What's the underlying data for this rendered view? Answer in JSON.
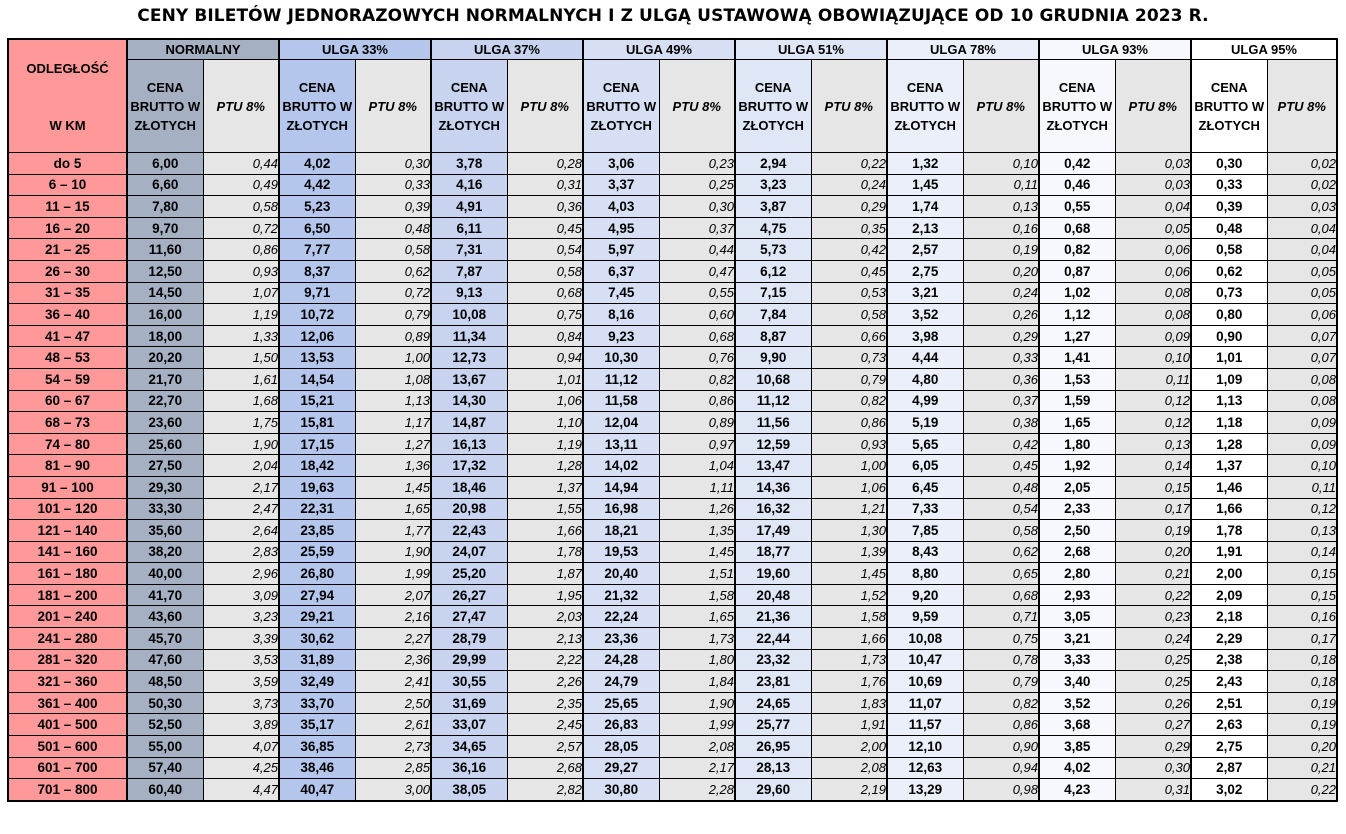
{
  "title": "CENY BILETÓW JEDNORAZOWYCH NORMALNYCH I Z ULGĄ USTAWOWĄ OBOWIĄZUJĄCE OD 10 GRUDNIA 2023 R.",
  "header": {
    "distance_line1": "ODLEGŁOŚĆ",
    "distance_line2": "W KM",
    "groups": [
      "NORMALNY",
      "ULGA 33%",
      "ULGA 37%",
      "ULGA 49%",
      "ULGA 51%",
      "ULGA 78%",
      "ULGA 93%",
      "ULGA 95%"
    ],
    "price_label": "CENA BRUTTO W ZŁOTYCH",
    "ptu_label": "PTU 8%"
  },
  "rows": [
    {
      "dist": "do 5",
      "cells": [
        "6,00",
        "0,44",
        "4,02",
        "0,30",
        "3,78",
        "0,28",
        "3,06",
        "0,23",
        "2,94",
        "0,22",
        "1,32",
        "0,10",
        "0,42",
        "0,03",
        "0,30",
        "0,02"
      ]
    },
    {
      "dist": "6 – 10",
      "cells": [
        "6,60",
        "0,49",
        "4,42",
        "0,33",
        "4,16",
        "0,31",
        "3,37",
        "0,25",
        "3,23",
        "0,24",
        "1,45",
        "0,11",
        "0,46",
        "0,03",
        "0,33",
        "0,02"
      ]
    },
    {
      "dist": "11 – 15",
      "cells": [
        "7,80",
        "0,58",
        "5,23",
        "0,39",
        "4,91",
        "0,36",
        "4,03",
        "0,30",
        "3,87",
        "0,29",
        "1,74",
        "0,13",
        "0,55",
        "0,04",
        "0,39",
        "0,03"
      ]
    },
    {
      "dist": "16 – 20",
      "cells": [
        "9,70",
        "0,72",
        "6,50",
        "0,48",
        "6,11",
        "0,45",
        "4,95",
        "0,37",
        "4,75",
        "0,35",
        "2,13",
        "0,16",
        "0,68",
        "0,05",
        "0,48",
        "0,04"
      ]
    },
    {
      "dist": "21 – 25",
      "cells": [
        "11,60",
        "0,86",
        "7,77",
        "0,58",
        "7,31",
        "0,54",
        "5,97",
        "0,44",
        "5,73",
        "0,42",
        "2,57",
        "0,19",
        "0,82",
        "0,06",
        "0,58",
        "0,04"
      ]
    },
    {
      "dist": "26 – 30",
      "cells": [
        "12,50",
        "0,93",
        "8,37",
        "0,62",
        "7,87",
        "0,58",
        "6,37",
        "0,47",
        "6,12",
        "0,45",
        "2,75",
        "0,20",
        "0,87",
        "0,06",
        "0,62",
        "0,05"
      ]
    },
    {
      "dist": "31 – 35",
      "cells": [
        "14,50",
        "1,07",
        "9,71",
        "0,72",
        "9,13",
        "0,68",
        "7,45",
        "0,55",
        "7,15",
        "0,53",
        "3,21",
        "0,24",
        "1,02",
        "0,08",
        "0,73",
        "0,05"
      ]
    },
    {
      "dist": "36 – 40",
      "cells": [
        "16,00",
        "1,19",
        "10,72",
        "0,79",
        "10,08",
        "0,75",
        "8,16",
        "0,60",
        "7,84",
        "0,58",
        "3,52",
        "0,26",
        "1,12",
        "0,08",
        "0,80",
        "0,06"
      ]
    },
    {
      "dist": "41 – 47",
      "cells": [
        "18,00",
        "1,33",
        "12,06",
        "0,89",
        "11,34",
        "0,84",
        "9,23",
        "0,68",
        "8,87",
        "0,66",
        "3,98",
        "0,29",
        "1,27",
        "0,09",
        "0,90",
        "0,07"
      ]
    },
    {
      "dist": "48 – 53",
      "cells": [
        "20,20",
        "1,50",
        "13,53",
        "1,00",
        "12,73",
        "0,94",
        "10,30",
        "0,76",
        "9,90",
        "0,73",
        "4,44",
        "0,33",
        "1,41",
        "0,10",
        "1,01",
        "0,07"
      ]
    },
    {
      "dist": "54 – 59",
      "cells": [
        "21,70",
        "1,61",
        "14,54",
        "1,08",
        "13,67",
        "1,01",
        "11,12",
        "0,82",
        "10,68",
        "0,79",
        "4,80",
        "0,36",
        "1,53",
        "0,11",
        "1,09",
        "0,08"
      ]
    },
    {
      "dist": "60 – 67",
      "cells": [
        "22,70",
        "1,68",
        "15,21",
        "1,13",
        "14,30",
        "1,06",
        "11,58",
        "0,86",
        "11,12",
        "0,82",
        "4,99",
        "0,37",
        "1,59",
        "0,12",
        "1,13",
        "0,08"
      ]
    },
    {
      "dist": "68 – 73",
      "cells": [
        "23,60",
        "1,75",
        "15,81",
        "1,17",
        "14,87",
        "1,10",
        "12,04",
        "0,89",
        "11,56",
        "0,86",
        "5,19",
        "0,38",
        "1,65",
        "0,12",
        "1,18",
        "0,09"
      ]
    },
    {
      "dist": "74 – 80",
      "cells": [
        "25,60",
        "1,90",
        "17,15",
        "1,27",
        "16,13",
        "1,19",
        "13,11",
        "0,97",
        "12,59",
        "0,93",
        "5,65",
        "0,42",
        "1,80",
        "0,13",
        "1,28",
        "0,09"
      ]
    },
    {
      "dist": "81 – 90",
      "cells": [
        "27,50",
        "2,04",
        "18,42",
        "1,36",
        "17,32",
        "1,28",
        "14,02",
        "1,04",
        "13,47",
        "1,00",
        "6,05",
        "0,45",
        "1,92",
        "0,14",
        "1,37",
        "0,10"
      ]
    },
    {
      "dist": "91 – 100",
      "cells": [
        "29,30",
        "2,17",
        "19,63",
        "1,45",
        "18,46",
        "1,37",
        "14,94",
        "1,11",
        "14,36",
        "1,06",
        "6,45",
        "0,48",
        "2,05",
        "0,15",
        "1,46",
        "0,11"
      ]
    },
    {
      "dist": "101 – 120",
      "cells": [
        "33,30",
        "2,47",
        "22,31",
        "1,65",
        "20,98",
        "1,55",
        "16,98",
        "1,26",
        "16,32",
        "1,21",
        "7,33",
        "0,54",
        "2,33",
        "0,17",
        "1,66",
        "0,12"
      ]
    },
    {
      "dist": "121 – 140",
      "cells": [
        "35,60",
        "2,64",
        "23,85",
        "1,77",
        "22,43",
        "1,66",
        "18,21",
        "1,35",
        "17,49",
        "1,30",
        "7,85",
        "0,58",
        "2,50",
        "0,19",
        "1,78",
        "0,13"
      ]
    },
    {
      "dist": "141 – 160",
      "cells": [
        "38,20",
        "2,83",
        "25,59",
        "1,90",
        "24,07",
        "1,78",
        "19,53",
        "1,45",
        "18,77",
        "1,39",
        "8,43",
        "0,62",
        "2,68",
        "0,20",
        "1,91",
        "0,14"
      ]
    },
    {
      "dist": "161 – 180",
      "cells": [
        "40,00",
        "2,96",
        "26,80",
        "1,99",
        "25,20",
        "1,87",
        "20,40",
        "1,51",
        "19,60",
        "1,45",
        "8,80",
        "0,65",
        "2,80",
        "0,21",
        "2,00",
        "0,15"
      ]
    },
    {
      "dist": "181 – 200",
      "cells": [
        "41,70",
        "3,09",
        "27,94",
        "2,07",
        "26,27",
        "1,95",
        "21,32",
        "1,58",
        "20,48",
        "1,52",
        "9,20",
        "0,68",
        "2,93",
        "0,22",
        "2,09",
        "0,15"
      ]
    },
    {
      "dist": "201 – 240",
      "cells": [
        "43,60",
        "3,23",
        "29,21",
        "2,16",
        "27,47",
        "2,03",
        "22,24",
        "1,65",
        "21,36",
        "1,58",
        "9,59",
        "0,71",
        "3,05",
        "0,23",
        "2,18",
        "0,16"
      ]
    },
    {
      "dist": "241 – 280",
      "cells": [
        "45,70",
        "3,39",
        "30,62",
        "2,27",
        "28,79",
        "2,13",
        "23,36",
        "1,73",
        "22,44",
        "1,66",
        "10,08",
        "0,75",
        "3,21",
        "0,24",
        "2,29",
        "0,17"
      ]
    },
    {
      "dist": "281 – 320",
      "cells": [
        "47,60",
        "3,53",
        "31,89",
        "2,36",
        "29,99",
        "2,22",
        "24,28",
        "1,80",
        "23,32",
        "1,73",
        "10,47",
        "0,78",
        "3,33",
        "0,25",
        "2,38",
        "0,18"
      ]
    },
    {
      "dist": "321 – 360",
      "cells": [
        "48,50",
        "3,59",
        "32,49",
        "2,41",
        "30,55",
        "2,26",
        "24,79",
        "1,84",
        "23,81",
        "1,76",
        "10,69",
        "0,79",
        "3,40",
        "0,25",
        "2,43",
        "0,18"
      ]
    },
    {
      "dist": "361 – 400",
      "cells": [
        "50,30",
        "3,73",
        "33,70",
        "2,50",
        "31,69",
        "2,35",
        "25,65",
        "1,90",
        "24,65",
        "1,83",
        "11,07",
        "0,82",
        "3,52",
        "0,26",
        "2,51",
        "0,19"
      ]
    },
    {
      "dist": "401 – 500",
      "cells": [
        "52,50",
        "3,89",
        "35,17",
        "2,61",
        "33,07",
        "2,45",
        "26,83",
        "1,99",
        "25,77",
        "1,91",
        "11,57",
        "0,86",
        "3,68",
        "0,27",
        "2,63",
        "0,19"
      ]
    },
    {
      "dist": "501 – 600",
      "cells": [
        "55,00",
        "4,07",
        "36,85",
        "2,73",
        "34,65",
        "2,57",
        "28,05",
        "2,08",
        "26,95",
        "2,00",
        "12,10",
        "0,90",
        "3,85",
        "0,29",
        "2,75",
        "0,20"
      ]
    },
    {
      "dist": "601 – 700",
      "cells": [
        "57,40",
        "4,25",
        "38,46",
        "2,85",
        "36,16",
        "2,68",
        "29,27",
        "2,17",
        "28,13",
        "2,08",
        "12,63",
        "0,94",
        "4,02",
        "0,30",
        "2,87",
        "0,21"
      ]
    },
    {
      "dist": "701 – 800",
      "cells": [
        "60,40",
        "4,47",
        "40,47",
        "3,00",
        "38,05",
        "2,82",
        "30,80",
        "2,28",
        "29,60",
        "2,19",
        "13,29",
        "0,98",
        "4,23",
        "0,31",
        "3,02",
        "0,22"
      ]
    }
  ]
}
